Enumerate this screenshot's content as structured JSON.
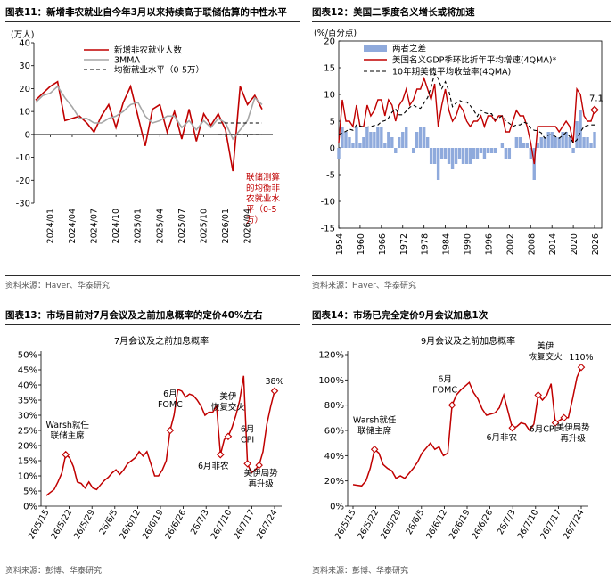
{
  "panels": [
    {
      "title": "图表11：新增非农就业自今年3月以来持续高于联储估算的中性水平",
      "source": "资料来源：Haver、华泰研究"
    },
    {
      "title": "图表12：美国二季度名义增长或将加速",
      "source": "资料来源：Haver、华泰研究"
    },
    {
      "title": "图表13：市场目前对7月会议及之前加息概率的定价40%左右",
      "source": "资料来源：彭博、华泰研究"
    },
    {
      "title": "图表14：市场已完全定价9月会议加息1次",
      "source": "资料来源：彭博、华泰研究"
    }
  ],
  "chart_data": [
    {
      "type": "line",
      "unit_label": "(万人)",
      "xlabel": "",
      "ylabel": "",
      "ylim": [
        -30,
        40
      ],
      "yticks": [
        -30,
        -20,
        -10,
        0,
        10,
        20,
        30,
        40
      ],
      "x_ticks": [
        "2024/01",
        "2024/04",
        "2024/07",
        "2024/10",
        "2025/01",
        "2025/04",
        "2025/07",
        "2025/10",
        "2026/01",
        "2026/04"
      ],
      "x": [
        "2023/11",
        "2023/12",
        "2024/01",
        "2024/02",
        "2024/03",
        "2024/04",
        "2024/05",
        "2024/06",
        "2024/07",
        "2024/08",
        "2024/09",
        "2024/10",
        "2024/11",
        "2024/12",
        "2025/01",
        "2025/02",
        "2025/03",
        "2025/04",
        "2025/05",
        "2025/06",
        "2025/07",
        "2025/08",
        "2025/09",
        "2025/10",
        "2025/11",
        "2025/12",
        "2026/01",
        "2026/02",
        "2026/03",
        "2026/04",
        "2026/05",
        "2026/06"
      ],
      "series": [
        {
          "name": "新增非农就业人数",
          "color": "#c00000",
          "values": [
            15,
            18,
            21,
            23,
            6,
            7,
            8,
            5,
            1,
            8,
            13,
            3,
            14,
            21,
            8,
            -5,
            11,
            13,
            1,
            10,
            -2,
            11,
            -3,
            9,
            4,
            9,
            2,
            -16,
            21,
            13,
            17,
            11
          ]
        },
        {
          "name": "3MMA",
          "color": "#a6a6a6",
          "values": [
            14,
            17,
            18,
            21,
            16,
            12,
            7,
            7,
            5,
            5,
            7,
            8,
            10,
            13,
            14,
            8,
            5,
            6,
            8,
            8,
            3,
            6,
            2,
            6,
            3,
            7,
            5,
            -2,
            2,
            6,
            16,
            13
          ]
        },
        {
          "name": "均衡就业水平（0-5万）",
          "color": "#000000",
          "dashed": true,
          "values": [
            null,
            null,
            null,
            null,
            null,
            null,
            null,
            null,
            null,
            null,
            null,
            null,
            null,
            null,
            null,
            null,
            null,
            null,
            null,
            null,
            null,
            null,
            null,
            null,
            null,
            5,
            5,
            5,
            5,
            5,
            5,
            5
          ]
        },
        {
          "name": "",
          "color": "#000000",
          "dashed": true,
          "values": [
            null,
            null,
            null,
            null,
            null,
            null,
            null,
            null,
            null,
            null,
            null,
            null,
            null,
            null,
            null,
            null,
            null,
            null,
            null,
            null,
            null,
            null,
            null,
            null,
            null,
            0,
            0,
            0,
            0,
            0,
            0,
            0
          ]
        }
      ],
      "annotation": "联储测算的均衡非农就业水平（0-5万）",
      "annotation_lines": [
        "联储测算",
        "的均衡非",
        "农就业水",
        "平（0-5",
        "万）"
      ],
      "legend": "top-left"
    },
    {
      "type": "line",
      "unit_label": "(%/百分点)",
      "ylim": [
        -15,
        20
      ],
      "yticks": [
        -15,
        -10,
        -5,
        0,
        5,
        10,
        15,
        20
      ],
      "xlim": [
        1954,
        2028
      ],
      "x_ticks": [
        1954,
        1960,
        1966,
        1972,
        1978,
        1984,
        1990,
        1996,
        2002,
        2008,
        2014,
        2020,
        2026
      ],
      "series": [
        {
          "name": "两者之差",
          "type": "bar",
          "color": "#8faadc",
          "x": [
            1954,
            1955,
            1956,
            1957,
            1958,
            1959,
            1960,
            1961,
            1962,
            1963,
            1964,
            1965,
            1966,
            1967,
            1968,
            1969,
            1970,
            1971,
            1972,
            1973,
            1974,
            1975,
            1976,
            1977,
            1978,
            1979,
            1980,
            1981,
            1982,
            1983,
            1984,
            1985,
            1986,
            1987,
            1988,
            1989,
            1990,
            1991,
            1992,
            1993,
            1994,
            1995,
            1996,
            1997,
            1998,
            1999,
            2000,
            2001,
            2002,
            2003,
            2004,
            2005,
            2006,
            2007,
            2008,
            2009,
            2010,
            2011,
            2012,
            2013,
            2014,
            2015,
            2016,
            2017,
            2018,
            2019,
            2020,
            2021,
            2022,
            2023,
            2024,
            2025,
            2026
          ],
          "values": [
            -2,
            4,
            3,
            2,
            1,
            4,
            1,
            2,
            4,
            3,
            3,
            4,
            4,
            1,
            3,
            2,
            -1,
            2,
            3,
            4,
            0,
            -1,
            3,
            4,
            4,
            2,
            -3,
            -3,
            -6,
            -2,
            -2,
            -3,
            -4,
            -3,
            -2,
            -3,
            -3,
            -3,
            -2,
            -2,
            -1,
            -2,
            -1,
            -1,
            -1,
            0,
            1,
            -2,
            -2,
            0,
            2,
            2,
            1,
            1,
            -2,
            -6,
            1,
            2,
            2,
            3,
            3,
            2,
            2,
            3,
            3,
            2,
            -1,
            5,
            7,
            2,
            2,
            1,
            3
          ]
        },
        {
          "name": "美国名义GDP季环比折年平均增速(4QMA)*",
          "color": "#c00000",
          "x": [
            1954,
            1955,
            1956,
            1957,
            1958,
            1959,
            1960,
            1961,
            1962,
            1963,
            1964,
            1965,
            1966,
            1967,
            1968,
            1969,
            1970,
            1971,
            1972,
            1973,
            1974,
            1975,
            1976,
            1977,
            1978,
            1979,
            1980,
            1981,
            1982,
            1983,
            1984,
            1985,
            1986,
            1987,
            1988,
            1989,
            1990,
            1991,
            1992,
            1993,
            1994,
            1995,
            1996,
            1997,
            1998,
            1999,
            2000,
            2001,
            2002,
            2003,
            2004,
            2005,
            2006,
            2007,
            2008,
            2009,
            2010,
            2011,
            2012,
            2013,
            2014,
            2015,
            2016,
            2017,
            2018,
            2019,
            2020,
            2021,
            2022,
            2023,
            2024,
            2025,
            2026
          ],
          "values": [
            1,
            9,
            5,
            5,
            4,
            8,
            4,
            4,
            8,
            6,
            7,
            9,
            9,
            6,
            9,
            8,
            5,
            8,
            9,
            11,
            8,
            9,
            11,
            11,
            13,
            11,
            9,
            12,
            4,
            8,
            11,
            7,
            5,
            6,
            8,
            7,
            5,
            4,
            5,
            5,
            6,
            4,
            6,
            6,
            5,
            6,
            6,
            3,
            3,
            5,
            7,
            6,
            6,
            4,
            1,
            -3,
            4,
            4,
            4,
            4,
            4,
            4,
            3,
            4,
            5,
            4,
            1,
            11,
            10,
            6,
            5,
            5,
            7.1
          ]
        },
        {
          "name": "10年期美债平均收益率(4QMA)",
          "color": "#000000",
          "dashed": true,
          "x": [
            1954,
            1955,
            1956,
            1957,
            1958,
            1959,
            1960,
            1961,
            1962,
            1963,
            1964,
            1965,
            1966,
            1967,
            1968,
            1969,
            1970,
            1971,
            1972,
            1973,
            1974,
            1975,
            1976,
            1977,
            1978,
            1979,
            1980,
            1981,
            1982,
            1983,
            1984,
            1985,
            1986,
            1987,
            1988,
            1989,
            1990,
            1991,
            1992,
            1993,
            1994,
            1995,
            1996,
            1997,
            1998,
            1999,
            2000,
            2001,
            2002,
            2003,
            2004,
            2005,
            2006,
            2007,
            2008,
            2009,
            2010,
            2011,
            2012,
            2013,
            2014,
            2015,
            2016,
            2017,
            2018,
            2019,
            2020,
            2021,
            2022,
            2023,
            2024,
            2025,
            2026
          ],
          "values": [
            2.5,
            2.8,
            3.1,
            3.5,
            3.3,
            4.3,
            4.1,
            3.9,
            3.9,
            4.0,
            4.2,
            4.3,
            4.9,
            5.1,
            5.6,
            6.7,
            7.3,
            6.2,
            6.2,
            6.9,
            7.6,
            8.0,
            7.6,
            7.4,
            8.4,
            9.4,
            11.4,
            13.9,
            13.0,
            11.1,
            12.4,
            10.6,
            7.7,
            8.4,
            8.9,
            8.5,
            8.6,
            7.9,
            7.0,
            5.9,
            7.1,
            6.6,
            6.4,
            6.4,
            5.3,
            5.6,
            6.0,
            5.0,
            4.6,
            4.0,
            4.3,
            4.3,
            4.8,
            4.6,
            3.7,
            3.3,
            3.2,
            2.8,
            1.8,
            2.4,
            2.5,
            2.1,
            1.8,
            2.3,
            2.9,
            2.1,
            0.9,
            1.5,
            3.0,
            4.0,
            4.2,
            4.3,
            4.3
          ]
        }
      ],
      "last_value_label": "7.1",
      "legend": "top-left"
    },
    {
      "type": "line",
      "title": "7月会议及之前加息概率",
      "ylim": [
        0,
        50
      ],
      "yticks": [
        "0%",
        "5%",
        "10%",
        "15%",
        "20%",
        "25%",
        "30%",
        "35%",
        "40%",
        "45%",
        "50%"
      ],
      "x_ticks": [
        "26/5/15",
        "26/5/22",
        "26/5/29",
        "26/6/5",
        "26/6/12",
        "26/6/19",
        "26/6/26",
        "26/7/3",
        "26/7/10",
        "26/7/17",
        "26/7/24"
      ],
      "series": [
        {
          "name": "",
          "color": "#c00000",
          "values": [
            3.5,
            4.5,
            5.5,
            8,
            11,
            17,
            16,
            13,
            8,
            7.5,
            6,
            8,
            6,
            5.5,
            7,
            8.5,
            9.5,
            11,
            12,
            10.5,
            12,
            14,
            15,
            16,
            18,
            16.5,
            18,
            14,
            10,
            10,
            12,
            15,
            25,
            30,
            38.5,
            38,
            36,
            37,
            36.5,
            35,
            33,
            30,
            31,
            31,
            33,
            17,
            22,
            23,
            26,
            30,
            35,
            43,
            14,
            11,
            12,
            13.5,
            18,
            27,
            33,
            38
          ]
        }
      ],
      "annotations": [
        {
          "text": "Warsh就任联储主席",
          "lines": [
            "Warsh就任",
            "联储主席"
          ],
          "at": 5
        },
        {
          "text": "6月FOMC",
          "lines": [
            "6月",
            "FOMC"
          ],
          "at": 32
        },
        {
          "text": "6月非农",
          "lines": [
            "6月非农"
          ],
          "at": 45
        },
        {
          "text": "美伊恢复交火",
          "lines": [
            "美伊",
            "恢复交火"
          ],
          "at": 47
        },
        {
          "text": "6月CPI",
          "lines": [
            "6月",
            "CPI"
          ],
          "at": 52
        },
        {
          "text": "美伊局势再升级",
          "lines": [
            "美伊局势",
            "再升级"
          ],
          "at": 55
        },
        {
          "text": "38%",
          "lines": [
            "38%"
          ],
          "at": 59
        }
      ]
    },
    {
      "type": "line",
      "title": "9月会议及之前加息概率",
      "ylim": [
        0,
        120
      ],
      "yticks": [
        "0%",
        "20%",
        "40%",
        "60%",
        "80%",
        "100%",
        "120%"
      ],
      "x_ticks": [
        "26/5/15",
        "26/5/22",
        "26/5/29",
        "26/6/5",
        "26/6/12",
        "26/6/19",
        "26/6/26",
        "26/7/3",
        "26/7/10",
        "26/7/17",
        "26/7/24"
      ],
      "series": [
        {
          "name": "",
          "color": "#c00000",
          "values": [
            17,
            16.5,
            16,
            20,
            30,
            45,
            42,
            33,
            30,
            28,
            22,
            24,
            22,
            26,
            30,
            35,
            42,
            46,
            50,
            45,
            47,
            40,
            42,
            80,
            88,
            92,
            95,
            98,
            90,
            85,
            77,
            72,
            73,
            74,
            78,
            88,
            75,
            62,
            63,
            66,
            65,
            60,
            65,
            88,
            84,
            88,
            97,
            66,
            68,
            70,
            70,
            85,
            102,
            110
          ]
        }
      ],
      "annotations": [
        {
          "text": "Warsh就任联储主席",
          "lines": [
            "Warsh就任",
            "联储主席"
          ],
          "at": 5
        },
        {
          "text": "6月FOMC",
          "lines": [
            "6月",
            "FOMC"
          ],
          "at": 23
        },
        {
          "text": "6月非农",
          "lines": [
            "6月非农"
          ],
          "at": 37
        },
        {
          "text": "美伊恢复交火",
          "lines": [
            "美伊",
            "恢复交火"
          ],
          "at": 43
        },
        {
          "text": "6月CPI",
          "lines": [
            "6月CPI"
          ],
          "at": 47
        },
        {
          "text": "美伊局势再升级",
          "lines": [
            "美伊局势",
            "再升级"
          ],
          "at": 49
        },
        {
          "text": "110%",
          "lines": [
            "110%"
          ],
          "at": 53
        }
      ]
    }
  ]
}
